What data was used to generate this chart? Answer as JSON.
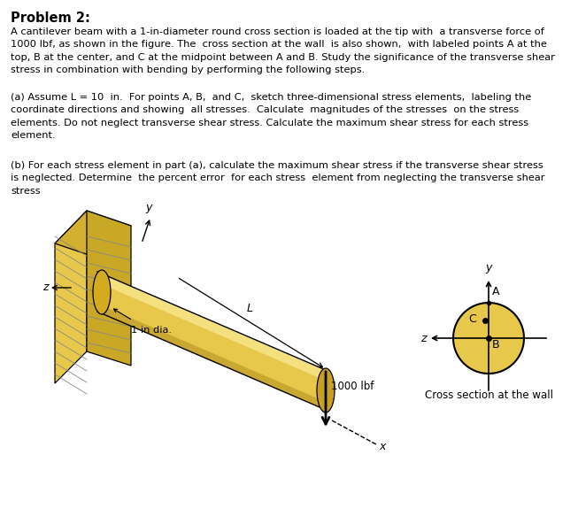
{
  "title": "Problem 2:",
  "background_color": "#ffffff",
  "text_color": "#000000",
  "para1_line1": "A cantilever beam with a 1-in-diameter round cross section is loaded at the tip with  a transverse force of",
  "para1_line2": "1000 lbf, as shown in the figure. The  cross section at the wall  is also shown,  with labeled points A at the",
  "para1_line3": "top, B at the center, and C at the midpoint between A and B. Study the significance of the transverse shear",
  "para1_line4": "stress in combination with bending by performing the following steps.",
  "para2a_line1": "(a) Assume L = 10  in.  For points A, B,  and C,  sketch three-dimensional stress elements,  labeling the",
  "para2a_line2": "coordinate directions and showing  all stresses.  Calculate  magnitudes of the stresses  on the stress",
  "para2a_line3": "elements. Do not neglect transverse shear stress. Calculate the maximum shear stress for each stress",
  "para2a_line4": "element.",
  "para2b_line1": "(b) For each stress element in part (a), calculate the maximum shear stress if the transverse shear stress",
  "para2b_line2": "is neglected. Determine  the percent error  for each stress  element from neglecting the transverse shear",
  "para2b_line3": "stress",
  "beam_color": "#e8c84a",
  "beam_highlight": "#f5e080",
  "beam_shadow": "#c8a830",
  "label_L": "L",
  "label_force": "1000 lbf",
  "label_dia": "1 in dia.",
  "label_cross": "Cross section at the wall",
  "label_A": "A",
  "label_B": "B",
  "label_C": "C"
}
